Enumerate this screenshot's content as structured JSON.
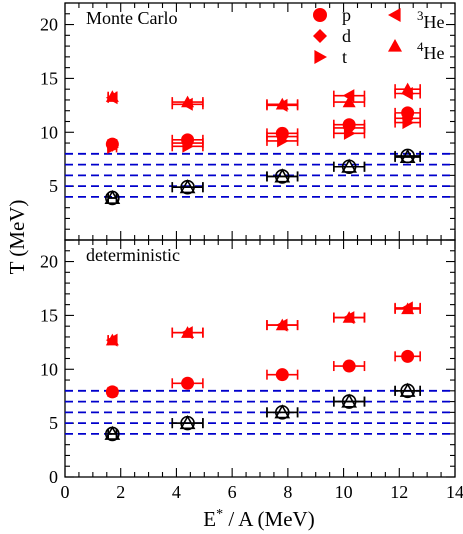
{
  "chart_data": [
    {
      "type": "scatter",
      "panel_label": "Monte Carlo",
      "xlim": [
        0,
        14
      ],
      "ylim": [
        0,
        22
      ],
      "x_ticks": [
        0,
        2,
        4,
        6,
        8,
        10,
        12,
        14
      ],
      "y_ticks": [
        5,
        10,
        15,
        20
      ],
      "y_tick_labels": [
        "5",
        "10",
        "15",
        "20"
      ],
      "legend": {
        "placement": "top-right",
        "entries": [
          {
            "label": "p",
            "marker": "circle"
          },
          {
            "label": "d",
            "marker": "diamond"
          },
          {
            "label": "t",
            "marker": "triangle-right"
          },
          {
            "label_sup": "3",
            "label": "He",
            "marker": "triangle-left"
          },
          {
            "label_sup": "4",
            "label": "He",
            "marker": "triangle-up"
          }
        ]
      },
      "hlines": [
        4.0,
        5.0,
        6.0,
        7.0,
        8.0
      ],
      "series": [
        {
          "marker": "triangle-up",
          "color": "#ff0000",
          "points": [
            {
              "x": 1.7,
              "y": 13.3
            },
            {
              "x": 4.4,
              "y": 12.8
            },
            {
              "x": 7.8,
              "y": 12.6
            },
            {
              "x": 10.2,
              "y": 12.8
            },
            {
              "x": 12.3,
              "y": 14.0
            }
          ]
        },
        {
          "marker": "triangle-left",
          "color": "#ff0000",
          "points": [
            {
              "x": 1.7,
              "y": 13.2
            },
            {
              "x": 4.4,
              "y": 12.6
            },
            {
              "x": 7.8,
              "y": 12.5
            },
            {
              "x": 10.2,
              "y": 13.4
            },
            {
              "x": 12.3,
              "y": 13.6
            }
          ]
        },
        {
          "marker": "circle",
          "color": "#ff0000",
          "points": [
            {
              "x": 1.7,
              "y": 8.9
            },
            {
              "x": 4.4,
              "y": 9.3
            },
            {
              "x": 7.8,
              "y": 9.9
            },
            {
              "x": 10.2,
              "y": 10.7
            },
            {
              "x": 12.3,
              "y": 11.8
            }
          ]
        },
        {
          "marker": "diamond",
          "color": "#ff0000",
          "points": [
            {
              "x": 1.7,
              "y": 8.8
            },
            {
              "x": 4.4,
              "y": 9.0
            },
            {
              "x": 7.8,
              "y": 9.6
            },
            {
              "x": 10.2,
              "y": 10.4
            },
            {
              "x": 12.3,
              "y": 11.3
            }
          ]
        },
        {
          "marker": "triangle-right",
          "color": "#ff0000",
          "points": [
            {
              "x": 1.7,
              "y": 8.6
            },
            {
              "x": 4.4,
              "y": 8.7
            },
            {
              "x": 7.8,
              "y": 9.2
            },
            {
              "x": 10.2,
              "y": 9.9
            },
            {
              "x": 12.3,
              "y": 10.9
            }
          ]
        },
        {
          "marker": "open-circle",
          "color": "#000000",
          "points": [
            {
              "x": 1.7,
              "y": 3.9
            },
            {
              "x": 4.4,
              "y": 4.9
            },
            {
              "x": 7.8,
              "y": 5.9
            },
            {
              "x": 10.2,
              "y": 6.8
            },
            {
              "x": 12.3,
              "y": 7.8
            }
          ]
        },
        {
          "marker": "open-triangle",
          "color": "#000000",
          "points": [
            {
              "x": 1.7,
              "y": 3.9
            },
            {
              "x": 4.4,
              "y": 4.9
            },
            {
              "x": 7.8,
              "y": 5.9
            },
            {
              "x": 10.2,
              "y": 6.8
            },
            {
              "x": 12.3,
              "y": 7.7
            }
          ]
        }
      ],
      "x_errors": [
        0.15,
        0.55,
        0.55,
        0.55,
        0.45
      ]
    },
    {
      "type": "scatter",
      "panel_label": "deterministic",
      "xlim": [
        0,
        14
      ],
      "ylim": [
        0,
        22
      ],
      "x_ticks": [
        0,
        2,
        4,
        6,
        8,
        10,
        12,
        14
      ],
      "x_tick_labels": [
        "0",
        "2",
        "4",
        "6",
        "8",
        "10",
        "12",
        "14"
      ],
      "y_ticks": [
        0,
        5,
        10,
        15,
        20
      ],
      "y_tick_labels": [
        "0",
        "5",
        "10",
        "15",
        "20"
      ],
      "hlines": [
        4.0,
        5.0,
        6.0,
        7.0,
        8.0
      ],
      "series": [
        {
          "marker": "triangle-up",
          "color": "#ff0000",
          "points": [
            {
              "x": 1.7,
              "y": 12.7
            },
            {
              "x": 4.4,
              "y": 13.4
            },
            {
              "x": 7.8,
              "y": 14.1
            },
            {
              "x": 10.2,
              "y": 14.8
            },
            {
              "x": 12.3,
              "y": 15.6
            }
          ]
        },
        {
          "marker": "triangle-left",
          "color": "#ff0000",
          "points": [
            {
              "x": 1.7,
              "y": 12.7
            },
            {
              "x": 4.4,
              "y": 13.4
            },
            {
              "x": 7.8,
              "y": 14.1
            },
            {
              "x": 10.2,
              "y": 14.8
            },
            {
              "x": 12.3,
              "y": 15.7
            }
          ]
        },
        {
          "marker": "circle",
          "color": "#ff0000",
          "points": [
            {
              "x": 1.7,
              "y": 7.9
            },
            {
              "x": 4.4,
              "y": 8.7
            },
            {
              "x": 7.8,
              "y": 9.5
            },
            {
              "x": 10.2,
              "y": 10.3
            },
            {
              "x": 12.3,
              "y": 11.2
            }
          ]
        },
        {
          "marker": "open-circle",
          "color": "#000000",
          "points": [
            {
              "x": 1.7,
              "y": 4.0
            },
            {
              "x": 4.4,
              "y": 5.0
            },
            {
              "x": 7.8,
              "y": 6.0
            },
            {
              "x": 10.2,
              "y": 7.0
            },
            {
              "x": 12.3,
              "y": 8.0
            }
          ]
        },
        {
          "marker": "open-triangle",
          "color": "#000000",
          "points": [
            {
              "x": 1.7,
              "y": 4.0
            },
            {
              "x": 4.4,
              "y": 5.0
            },
            {
              "x": 7.8,
              "y": 6.0
            },
            {
              "x": 10.2,
              "y": 7.0
            },
            {
              "x": 12.3,
              "y": 8.0
            }
          ]
        }
      ],
      "x_errors": [
        0.15,
        0.55,
        0.55,
        0.55,
        0.45
      ]
    }
  ],
  "axes": {
    "ylabel": "T (MeV)",
    "xlabel_prefix": "E",
    "xlabel_sup": "*",
    "xlabel_suffix": " / A (MeV)"
  },
  "colors": {
    "marker": "#ff0000",
    "reference": "#000000",
    "hline": "#0000cc",
    "axis": "#000000"
  }
}
